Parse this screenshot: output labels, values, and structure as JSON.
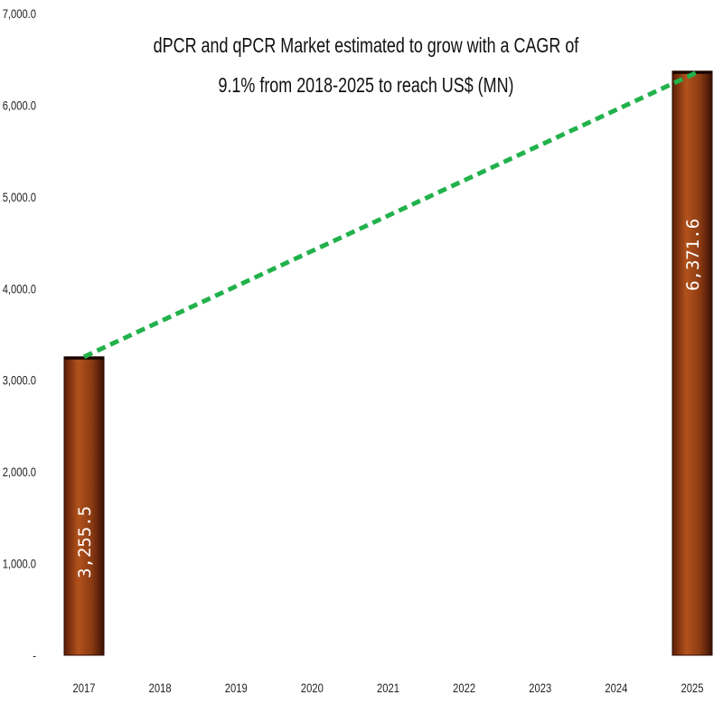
{
  "chart_data": {
    "type": "bar",
    "title": "dPCR and qPCR Market estimated to grow with a CAGR of 9.1% from 2018-2025 to reach US$ (MN)",
    "categories": [
      "2017",
      "2018",
      "2019",
      "2020",
      "2021",
      "2022",
      "2023",
      "2024",
      "2025"
    ],
    "values": [
      3255.5,
      null,
      null,
      null,
      null,
      null,
      null,
      null,
      6371.6
    ],
    "data_labels": [
      "3,255.5",
      "",
      "",
      "",
      "",
      "",
      "",
      "",
      "6,371.6"
    ],
    "ylim": [
      0,
      7000
    ],
    "yticks": [
      0,
      1000,
      2000,
      3000,
      4000,
      5000,
      6000,
      7000
    ],
    "ytick_labels": [
      "-",
      "1,000.0",
      "2,000.0",
      "3,000.0",
      "4,000.0",
      "5,000.0",
      "6,000.0",
      "7,000.0"
    ],
    "trend_line": {
      "from": "2017",
      "to": "2025",
      "style": "dashed",
      "color": "#22b24c"
    },
    "bar_color": "#8b3a12",
    "grid": false,
    "xlabel": "",
    "ylabel": ""
  }
}
